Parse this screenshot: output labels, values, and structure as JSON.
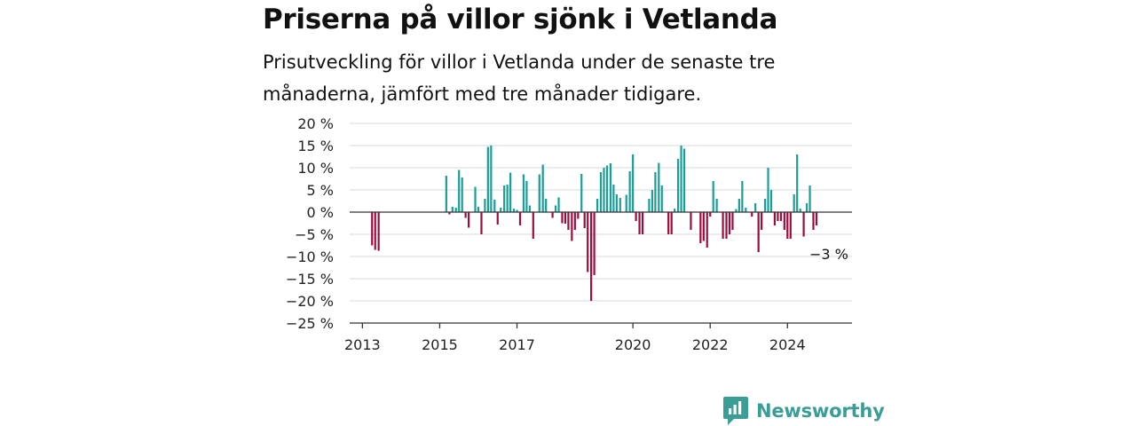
{
  "title": "Priserna på villor sjönk i Vetlanda",
  "subtitle": "Prisutveckling för villor i Vetlanda under de senaste tre månaderna, jämfört med tre månader tidigare.",
  "brand": "Newsworthy",
  "colors": {
    "positive": "#1a9e96",
    "negative": "#9b0d3c",
    "grid": "#d9d9d9",
    "axis": "#333333",
    "brand": "#3a9e96"
  },
  "chart_data": {
    "type": "bar",
    "ylim": [
      -25,
      20
    ],
    "yticks": [
      20,
      15,
      10,
      5,
      0,
      -5,
      -10,
      -15,
      -20,
      -25
    ],
    "ytick_labels": [
      "20 %",
      "15 %",
      "10 %",
      "5 %",
      "0 %",
      "−5 %",
      "−10 %",
      "−15 %",
      "−20 %",
      "−25 %"
    ],
    "xlim": [
      2012.67,
      2025.67
    ],
    "xticks": [
      2013,
      2015,
      2017,
      2020,
      2022,
      2024
    ],
    "xtick_labels": [
      "2013",
      "2015",
      "2017",
      "2020",
      "2022",
      "2024"
    ],
    "grid": true,
    "annotation": {
      "text": "−3 %",
      "x": 2024.75,
      "y": -3
    },
    "x": [
      2013.25,
      2013.33,
      2013.42,
      2015.17,
      2015.25,
      2015.33,
      2015.42,
      2015.5,
      2015.58,
      2015.67,
      2015.75,
      2015.83,
      2015.92,
      2016.0,
      2016.08,
      2016.17,
      2016.25,
      2016.33,
      2016.42,
      2016.5,
      2016.58,
      2016.67,
      2016.75,
      2016.83,
      2016.92,
      2017.0,
      2017.08,
      2017.17,
      2017.25,
      2017.33,
      2017.42,
      2017.5,
      2017.58,
      2017.67,
      2017.75,
      2017.83,
      2017.92,
      2018.0,
      2018.08,
      2018.17,
      2018.25,
      2018.33,
      2018.42,
      2018.5,
      2018.58,
      2018.67,
      2018.75,
      2018.83,
      2018.92,
      2019.0,
      2019.08,
      2019.17,
      2019.25,
      2019.33,
      2019.42,
      2019.5,
      2019.58,
      2019.67,
      2019.75,
      2019.83,
      2019.92,
      2020.0,
      2020.08,
      2020.17,
      2020.25,
      2020.33,
      2020.42,
      2020.5,
      2020.58,
      2020.67,
      2020.75,
      2020.83,
      2020.92,
      2021.0,
      2021.08,
      2021.17,
      2021.25,
      2021.33,
      2021.42,
      2021.5,
      2021.58,
      2021.67,
      2021.75,
      2021.83,
      2021.92,
      2022.0,
      2022.08,
      2022.17,
      2022.25,
      2022.33,
      2022.42,
      2022.5,
      2022.58,
      2022.67,
      2022.75,
      2022.83,
      2022.92,
      2023.0,
      2023.08,
      2023.17,
      2023.25,
      2023.33,
      2023.42,
      2023.5,
      2023.58,
      2023.67,
      2023.75,
      2023.83,
      2023.92,
      2024.0,
      2024.08,
      2024.17,
      2024.25,
      2024.33,
      2024.42,
      2024.5,
      2024.58,
      2024.67,
      2024.75
    ],
    "values": [
      -7.5,
      -8.5,
      -8.7,
      8.2,
      -0.5,
      1.2,
      1.0,
      9.5,
      7.8,
      -1.3,
      -3.5,
      0,
      5.7,
      1.2,
      -5.0,
      3.0,
      14.7,
      15.0,
      2.8,
      -2.8,
      1.0,
      6.0,
      6.2,
      8.9,
      0.8,
      0.5,
      -3.0,
      8.5,
      7.0,
      1.5,
      -6.0,
      0,
      8.5,
      10.7,
      3.0,
      0,
      -1.3,
      1.5,
      3.3,
      -2.5,
      -2.6,
      -4.0,
      -6.5,
      -4.0,
      -1.5,
      8.6,
      -3.6,
      -13.5,
      -20.0,
      -14.2,
      3.0,
      9.0,
      10.0,
      10.5,
      11.0,
      6.2,
      4.0,
      3.2,
      0,
      3.9,
      9.2,
      13.0,
      -2.0,
      -5.0,
      -5.0,
      0,
      3.0,
      5.0,
      9.0,
      11.1,
      6.0,
      0,
      -5.0,
      -5.0,
      0.8,
      12.0,
      15.0,
      14.3,
      0,
      -4.0,
      0,
      0,
      -7.0,
      -6.5,
      -8.0,
      -1.0,
      7.0,
      3.0,
      0,
      -6.0,
      -6.0,
      -5.0,
      -4.0,
      0.7,
      3.0,
      7.0,
      1.0,
      0,
      -1.0,
      2.0,
      -9.0,
      -4.0,
      3.0,
      10.0,
      5.0,
      -3.0,
      -2.0,
      -2.0,
      -4.0,
      -6.0,
      -6.0,
      4.0,
      13.0,
      0.8,
      -5.5,
      2.0,
      6.0,
      -4.0,
      -3.0
    ]
  }
}
